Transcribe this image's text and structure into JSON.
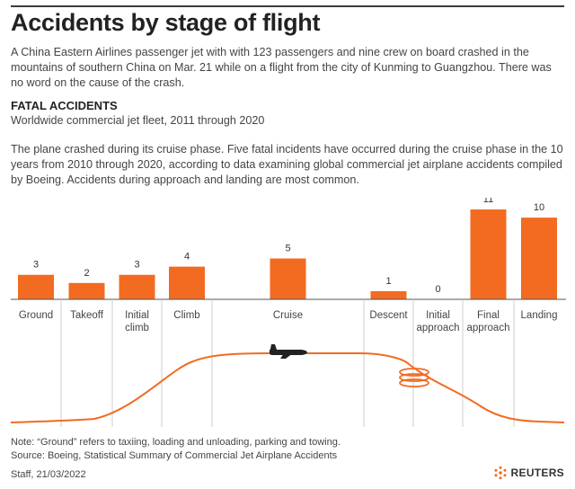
{
  "title": "Accidents by stage of flight",
  "lead": "A China Eastern Airlines passenger jet with with 123 passengers and nine crew on board crashed in the mountains of southern China on Mar. 21 while on a flight from the city of Kunming to Guangzhou. There was no word on the cause of the crash.",
  "section_title": "FATAL ACCIDENTS",
  "section_subtitle": "Worldwide commercial jet fleet, 2011 through 2020",
  "body": "The plane crashed during its cruise phase. Five fatal incidents have occurred during the cruise phase in the 10 years from 2010 through 2020, according to data examining global commercial jet airplane accidents compiled by Boeing. Accidents during approach and landing are most common.",
  "note": "Note: “Ground” refers to taxiing, loading and unloading, parking and towing.",
  "source": "Source: Boeing, Statistical Summary of Commercial Jet Airplane Accidents",
  "credit": "Staff, 21/03/2022",
  "logo_text": "REUTERS",
  "colors": {
    "bar": "#f26b21",
    "axis": "#555555",
    "divider": "#cccccc",
    "flight_path": "#f26b21",
    "plane": "#222222"
  },
  "icons": {
    "plane": "airplane-icon",
    "logo": "reuters-logo-icon"
  },
  "chart_data": {
    "type": "bar",
    "categories": [
      "Ground",
      "Takeoff",
      "Initial climb",
      "Climb",
      "Cruise",
      "Descent",
      "Initial approach",
      "Final approach",
      "Landing"
    ],
    "values": [
      3,
      2,
      3,
      4,
      5,
      1,
      0,
      11,
      10
    ],
    "ylim": [
      0,
      11
    ],
    "grid": false,
    "legend": "none",
    "title": "",
    "xlabel": "",
    "ylabel": ""
  }
}
